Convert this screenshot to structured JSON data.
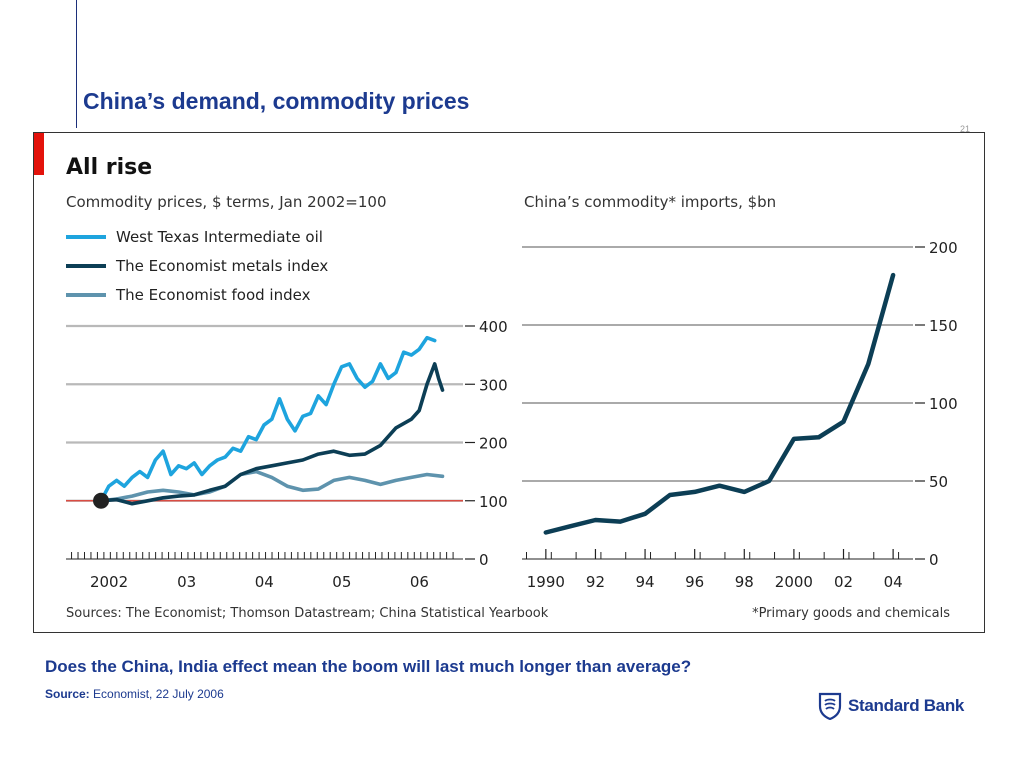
{
  "slide": {
    "title": "China’s demand, commodity prices",
    "page_number": "21",
    "question": "Does the China, India effect mean the boom will last much longer than average?",
    "source_label": "Source:",
    "source_text": " Economist, 22 July 2006",
    "logo_text": "Standard Bank"
  },
  "colors": {
    "title_blue": "#1c3a8f",
    "accent_red": "#e3120b",
    "oil": "#1ea4de",
    "metals": "#0c3e55",
    "food": "#5e93ad",
    "baseline_red": "#e03c31",
    "grid": "#b9b9b9"
  },
  "chart_header": {
    "title": "All rise",
    "sources": "Sources: The Economist; Thomson Datastream; China Statistical Yearbook",
    "footnote": "*Primary goods and chemicals"
  },
  "chart_data": [
    {
      "type": "line",
      "title": "Commodity prices, $ terms, Jan 2002=100",
      "x_tick_labels": [
        "2002",
        "03",
        "04",
        "05",
        "06"
      ],
      "x_tick_values": [
        2002,
        2003,
        2004,
        2005,
        2006
      ],
      "xlim": [
        2001.6,
        2006.6
      ],
      "ylim": [
        0,
        400
      ],
      "y_ticks": [
        0,
        100,
        200,
        300,
        400
      ],
      "reference_line": 100,
      "grid": true,
      "legend": "top-left",
      "series": [
        {
          "name": "West Texas Intermediate oil",
          "color_key": "oil",
          "x": [
            2002.0,
            2002.1,
            2002.2,
            2002.3,
            2002.4,
            2002.5,
            2002.6,
            2002.7,
            2002.8,
            2002.9,
            2003.0,
            2003.1,
            2003.2,
            2003.3,
            2003.4,
            2003.5,
            2003.6,
            2003.7,
            2003.8,
            2003.9,
            2004.0,
            2004.1,
            2004.2,
            2004.3,
            2004.4,
            2004.5,
            2004.6,
            2004.7,
            2004.8,
            2004.9,
            2005.0,
            2005.1,
            2005.2,
            2005.3,
            2005.4,
            2005.5,
            2005.6,
            2005.7,
            2005.8,
            2005.9,
            2006.0,
            2006.1,
            2006.2,
            2006.3
          ],
          "y": [
            100,
            125,
            135,
            125,
            140,
            150,
            140,
            170,
            185,
            145,
            160,
            155,
            165,
            145,
            160,
            170,
            175,
            190,
            185,
            210,
            205,
            230,
            240,
            275,
            240,
            220,
            245,
            250,
            280,
            265,
            300,
            330,
            335,
            310,
            295,
            305,
            335,
            310,
            320,
            355,
            350,
            360,
            380,
            375
          ]
        },
        {
          "name": "The Economist metals index",
          "color_key": "metals",
          "x": [
            2002.0,
            2002.2,
            2002.4,
            2002.6,
            2002.8,
            2003.0,
            2003.2,
            2003.4,
            2003.6,
            2003.8,
            2004.0,
            2004.2,
            2004.4,
            2004.6,
            2004.8,
            2005.0,
            2005.2,
            2005.4,
            2005.6,
            2005.8,
            2006.0,
            2006.1,
            2006.2,
            2006.3,
            2006.35,
            2006.4
          ],
          "y": [
            100,
            102,
            95,
            100,
            105,
            108,
            110,
            118,
            125,
            145,
            155,
            160,
            165,
            170,
            180,
            185,
            178,
            180,
            195,
            225,
            240,
            255,
            300,
            335,
            310,
            290
          ]
        },
        {
          "name": "The Economist food index",
          "color_key": "food",
          "x": [
            2002.0,
            2002.2,
            2002.4,
            2002.6,
            2002.8,
            2003.0,
            2003.2,
            2003.4,
            2003.6,
            2003.8,
            2004.0,
            2004.2,
            2004.4,
            2004.6,
            2004.8,
            2005.0,
            2005.2,
            2005.4,
            2005.6,
            2005.8,
            2006.0,
            2006.2,
            2006.4
          ],
          "y": [
            100,
            103,
            108,
            115,
            118,
            115,
            110,
            115,
            125,
            145,
            150,
            140,
            125,
            118,
            120,
            135,
            140,
            135,
            128,
            135,
            140,
            145,
            142
          ]
        }
      ]
    },
    {
      "type": "line",
      "title": "China’s commodity* imports, $bn",
      "x_tick_labels": [
        "1990",
        "92",
        "94",
        "96",
        "98",
        "2000",
        "02",
        "04"
      ],
      "x_tick_values": [
        1990,
        1992,
        1994,
        1996,
        1998,
        2000,
        2002,
        2004
      ],
      "xlim": [
        1989.2,
        2004.6
      ],
      "ylim": [
        0,
        200
      ],
      "y_ticks": [
        0,
        50,
        100,
        150,
        200
      ],
      "grid": true,
      "series": [
        {
          "color_key": "metals",
          "x": [
            1990,
            1991,
            1992,
            1993,
            1994,
            1995,
            1996,
            1997,
            1998,
            1999,
            2000,
            2001,
            2002,
            2003,
            2004
          ],
          "y": [
            17,
            21,
            25,
            24,
            29,
            41,
            43,
            47,
            43,
            50,
            77,
            78,
            88,
            125,
            182
          ]
        }
      ]
    }
  ]
}
